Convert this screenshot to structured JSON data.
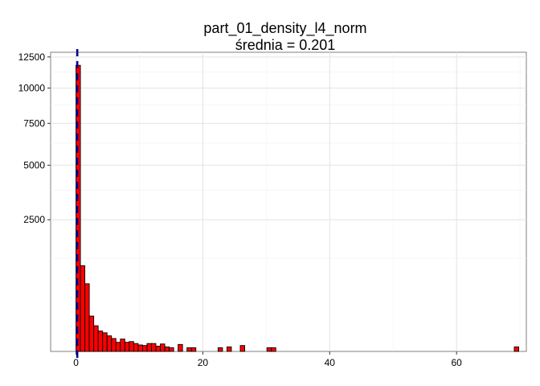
{
  "chart_data": {
    "type": "bar",
    "title": "part_01_density_l4_norm",
    "subtitle": "średnia = 0.201",
    "xlabel": "",
    "ylabel": "",
    "xlim": [
      -4,
      71
    ],
    "x_ticks": [
      0,
      20,
      40,
      60
    ],
    "y_scale": "sqrt",
    "ylim": [
      0,
      12900
    ],
    "y_ticks": [
      2500,
      5000,
      7500,
      10000,
      12500
    ],
    "grid": true,
    "bin_width": 0.697,
    "bar_color": "#ff0000",
    "bar_outline": "#000000",
    "bins": [
      {
        "x": 0.0,
        "count": 11800
      },
      {
        "x": 0.7,
        "count": 1060
      },
      {
        "x": 1.4,
        "count": 660
      },
      {
        "x": 2.1,
        "count": 180
      },
      {
        "x": 2.8,
        "count": 95
      },
      {
        "x": 3.5,
        "count": 60
      },
      {
        "x": 4.2,
        "count": 50
      },
      {
        "x": 4.9,
        "count": 35
      },
      {
        "x": 5.6,
        "count": 24
      },
      {
        "x": 6.3,
        "count": 12
      },
      {
        "x": 7.0,
        "count": 22
      },
      {
        "x": 7.7,
        "count": 12
      },
      {
        "x": 8.4,
        "count": 14
      },
      {
        "x": 9.1,
        "count": 9
      },
      {
        "x": 9.8,
        "count": 6
      },
      {
        "x": 10.5,
        "count": 5
      },
      {
        "x": 11.2,
        "count": 9
      },
      {
        "x": 11.9,
        "count": 9
      },
      {
        "x": 12.6,
        "count": 4
      },
      {
        "x": 13.3,
        "count": 8
      },
      {
        "x": 14.0,
        "count": 3
      },
      {
        "x": 14.7,
        "count": 2
      },
      {
        "x": 16.1,
        "count": 7
      },
      {
        "x": 17.5,
        "count": 2
      },
      {
        "x": 18.2,
        "count": 2
      },
      {
        "x": 22.4,
        "count": 2
      },
      {
        "x": 23.8,
        "count": 3
      },
      {
        "x": 25.9,
        "count": 5
      },
      {
        "x": 30.1,
        "count": 2
      },
      {
        "x": 30.8,
        "count": 2
      },
      {
        "x": 69.1,
        "count": 3
      }
    ],
    "mean_line": {
      "x": 0.201,
      "color": "#00008b"
    }
  }
}
